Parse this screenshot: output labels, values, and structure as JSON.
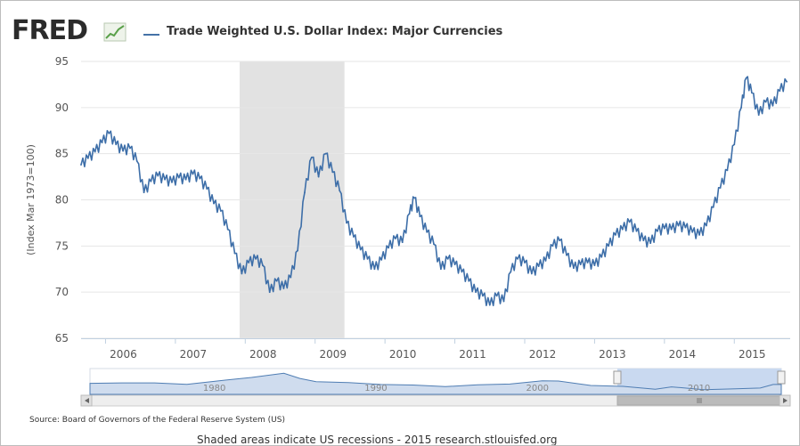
{
  "header": {
    "logo_text": "FRED",
    "legend_label": "Trade Weighted U.S. Dollar Index: Major Currencies"
  },
  "footer": {
    "source": "Source: Board of Governors of the Federal Reserve System (US)",
    "shaded_note": "Shaded areas indicate US recessions - 2015 research.stlouisfed.org"
  },
  "colors": {
    "line": "#3d6ea8",
    "recession": "#e2e2e2",
    "grid": "#e6e6e6",
    "navigator_fill": "#cfdcee",
    "navigator_selection": "#c9d9f0"
  },
  "chart_data": {
    "type": "line",
    "title": "",
    "xlabel": "",
    "ylabel": "(Index Mar 1973=100)",
    "x_range": [
      2005.65,
      2015.8
    ],
    "ylim": [
      65,
      95
    ],
    "y_ticks": [
      65,
      70,
      75,
      80,
      85,
      90,
      95
    ],
    "x_ticks": [
      {
        "value": 2006,
        "label": "2006"
      },
      {
        "value": 2007,
        "label": "2007"
      },
      {
        "value": 2008,
        "label": "2008"
      },
      {
        "value": 2009,
        "label": "2009"
      },
      {
        "value": 2010,
        "label": "2010"
      },
      {
        "value": 2011,
        "label": "2011"
      },
      {
        "value": 2012,
        "label": "2012"
      },
      {
        "value": 2013,
        "label": "2013"
      },
      {
        "value": 2014,
        "label": "2014"
      },
      {
        "value": 2015,
        "label": "2015"
      }
    ],
    "grid": "horizontal",
    "recessions": [
      [
        2007.92,
        2009.42
      ]
    ],
    "series": [
      {
        "points": [
          [
            2005.65,
            83.8
          ],
          [
            2005.75,
            84.5
          ],
          [
            2005.85,
            85.2
          ],
          [
            2005.95,
            86.2
          ],
          [
            2006.05,
            87.2
          ],
          [
            2006.15,
            86.0
          ],
          [
            2006.25,
            85.3
          ],
          [
            2006.35,
            85.6
          ],
          [
            2006.45,
            84.2
          ],
          [
            2006.55,
            80.8
          ],
          [
            2006.65,
            82.0
          ],
          [
            2006.75,
            82.6
          ],
          [
            2006.85,
            82.2
          ],
          [
            2006.95,
            81.9
          ],
          [
            2007.05,
            82.4
          ],
          [
            2007.15,
            82.2
          ],
          [
            2007.25,
            82.8
          ],
          [
            2007.35,
            82.3
          ],
          [
            2007.45,
            81.2
          ],
          [
            2007.55,
            79.6
          ],
          [
            2007.65,
            78.8
          ],
          [
            2007.75,
            76.8
          ],
          [
            2007.85,
            74.2
          ],
          [
            2007.95,
            72.0
          ],
          [
            2008.05,
            73.2
          ],
          [
            2008.15,
            73.6
          ],
          [
            2008.25,
            72.9
          ],
          [
            2008.35,
            70.0
          ],
          [
            2008.45,
            71.2
          ],
          [
            2008.55,
            70.4
          ],
          [
            2008.65,
            71.6
          ],
          [
            2008.75,
            74.5
          ],
          [
            2008.85,
            80.8
          ],
          [
            2008.95,
            84.6
          ],
          [
            2009.05,
            82.5
          ],
          [
            2009.15,
            85.0
          ],
          [
            2009.25,
            83.0
          ],
          [
            2009.35,
            81.0
          ],
          [
            2009.45,
            77.5
          ],
          [
            2009.55,
            76.0
          ],
          [
            2009.65,
            74.6
          ],
          [
            2009.75,
            73.6
          ],
          [
            2009.85,
            72.5
          ],
          [
            2009.95,
            73.5
          ],
          [
            2010.05,
            74.8
          ],
          [
            2010.15,
            75.8
          ],
          [
            2010.25,
            75.4
          ],
          [
            2010.35,
            78.5
          ],
          [
            2010.42,
            80.2
          ],
          [
            2010.5,
            78.2
          ],
          [
            2010.6,
            76.5
          ],
          [
            2010.7,
            75.2
          ],
          [
            2010.8,
            72.5
          ],
          [
            2010.9,
            73.6
          ],
          [
            2011.0,
            73.0
          ],
          [
            2011.1,
            72.2
          ],
          [
            2011.2,
            71.2
          ],
          [
            2011.3,
            70.0
          ],
          [
            2011.4,
            69.6
          ],
          [
            2011.5,
            68.6
          ],
          [
            2011.6,
            69.6
          ],
          [
            2011.7,
            69.0
          ],
          [
            2011.8,
            72.2
          ],
          [
            2011.9,
            73.6
          ],
          [
            2012.0,
            73.2
          ],
          [
            2012.1,
            72.0
          ],
          [
            2012.2,
            72.8
          ],
          [
            2012.3,
            73.4
          ],
          [
            2012.4,
            75.0
          ],
          [
            2012.5,
            75.6
          ],
          [
            2012.6,
            74.0
          ],
          [
            2012.7,
            72.6
          ],
          [
            2012.8,
            73.0
          ],
          [
            2012.9,
            73.2
          ],
          [
            2013.0,
            72.9
          ],
          [
            2013.1,
            73.8
          ],
          [
            2013.2,
            75.0
          ],
          [
            2013.3,
            76.2
          ],
          [
            2013.4,
            76.8
          ],
          [
            2013.5,
            77.6
          ],
          [
            2013.6,
            76.6
          ],
          [
            2013.7,
            75.6
          ],
          [
            2013.8,
            75.3
          ],
          [
            2013.9,
            76.6
          ],
          [
            2014.0,
            76.9
          ],
          [
            2014.1,
            76.8
          ],
          [
            2014.2,
            77.2
          ],
          [
            2014.3,
            77.0
          ],
          [
            2014.4,
            76.5
          ],
          [
            2014.5,
            76.2
          ],
          [
            2014.6,
            77.2
          ],
          [
            2014.7,
            79.2
          ],
          [
            2014.8,
            81.3
          ],
          [
            2014.9,
            83.2
          ],
          [
            2015.0,
            86.0
          ],
          [
            2015.1,
            90.0
          ],
          [
            2015.17,
            93.2
          ],
          [
            2015.25,
            91.6
          ],
          [
            2015.35,
            89.2
          ],
          [
            2015.45,
            90.6
          ],
          [
            2015.55,
            90.2
          ],
          [
            2015.65,
            91.8
          ],
          [
            2015.75,
            92.8
          ]
        ]
      }
    ],
    "navigator": {
      "labels": [
        {
          "value": 1980,
          "label": "1980"
        },
        {
          "value": 1990,
          "label": "1990"
        },
        {
          "value": 2000,
          "label": "2000"
        },
        {
          "value": 2010,
          "label": "2010"
        }
      ],
      "x_range": [
        1973.0,
        2015.8
      ],
      "selection": [
        2005.65,
        2015.8
      ],
      "values": [
        [
          1973.0,
          97
        ],
        [
          1975.0,
          99
        ],
        [
          1977.0,
          99
        ],
        [
          1979.0,
          93
        ],
        [
          1981.0,
          108
        ],
        [
          1983.0,
          122
        ],
        [
          1985.0,
          140
        ],
        [
          1986.0,
          118
        ],
        [
          1987.0,
          104
        ],
        [
          1989.0,
          100
        ],
        [
          1991.0,
          92
        ],
        [
          1993.0,
          90
        ],
        [
          1995.0,
          83
        ],
        [
          1997.0,
          91
        ],
        [
          1999.0,
          94
        ],
        [
          2001.0,
          108
        ],
        [
          2002.0,
          107
        ],
        [
          2004.0,
          88
        ],
        [
          2006.0,
          84
        ],
        [
          2008.0,
          72
        ],
        [
          2009.0,
          82
        ],
        [
          2011.0,
          70
        ],
        [
          2013.0,
          74
        ],
        [
          2014.5,
          77
        ],
        [
          2015.3,
          92
        ],
        [
          2015.8,
          93
        ]
      ]
    }
  }
}
